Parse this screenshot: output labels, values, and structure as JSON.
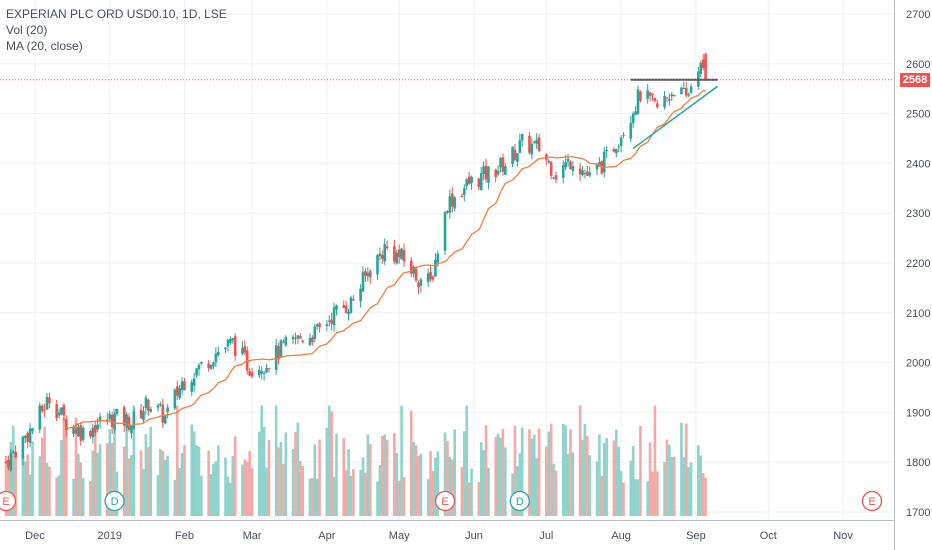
{
  "legend": {
    "symbol": "EXPERIAN PLC ORD USD0.10, 1D, LSE",
    "volume": "Vol (20)",
    "ma": "MA (20, close)"
  },
  "chart_data": {
    "type": "candlestick",
    "price_axis": {
      "ticks": [
        1700,
        1800,
        1900,
        2000,
        2100,
        2200,
        2300,
        2400,
        2500,
        2600,
        2700
      ],
      "range": [
        1690,
        2720
      ]
    },
    "last_price": 2568,
    "time_axis": {
      "labels": [
        "Dec",
        "2019",
        "Feb",
        "Mar",
        "Apr",
        "May",
        "Jun",
        "Jul",
        "Aug",
        "Sep",
        "Oct",
        "Nov"
      ]
    },
    "price_path": [
      [
        "2018-11-19",
        1800
      ],
      [
        "2018-11-30",
        1870
      ],
      [
        "2018-12-07",
        1930
      ],
      [
        "2018-12-14",
        1880
      ],
      [
        "2018-12-21",
        1860
      ],
      [
        "2018-12-28",
        1880
      ],
      [
        "2019-01-03",
        1890
      ],
      [
        "2019-01-10",
        1880
      ],
      [
        "2019-01-17",
        1920
      ],
      [
        "2019-01-24",
        1890
      ],
      [
        "2019-01-31",
        1960
      ],
      [
        "2019-02-07",
        1990
      ],
      [
        "2019-02-14",
        2020
      ],
      [
        "2019-02-21",
        2040
      ],
      [
        "2019-02-28",
        1990
      ],
      [
        "2019-03-07",
        2000
      ],
      [
        "2019-03-14",
        2030
      ],
      [
        "2019-03-21",
        2050
      ],
      [
        "2019-03-28",
        2060
      ],
      [
        "2019-04-04",
        2100
      ],
      [
        "2019-04-11",
        2120
      ],
      [
        "2019-04-18",
        2180
      ],
      [
        "2019-04-25",
        2230
      ],
      [
        "2019-05-02",
        2210
      ],
      [
        "2019-05-09",
        2170
      ],
      [
        "2019-05-14",
        2160
      ],
      [
        "2019-05-21",
        2320
      ],
      [
        "2019-05-30",
        2360
      ],
      [
        "2019-06-07",
        2380
      ],
      [
        "2019-06-14",
        2400
      ],
      [
        "2019-06-21",
        2440
      ],
      [
        "2019-06-28",
        2430
      ],
      [
        "2019-07-05",
        2380
      ],
      [
        "2019-07-12",
        2410
      ],
      [
        "2019-07-19",
        2370
      ],
      [
        "2019-07-26",
        2410
      ],
      [
        "2019-08-02",
        2470
      ],
      [
        "2019-08-09",
        2540
      ],
      [
        "2019-08-16",
        2510
      ],
      [
        "2019-08-23",
        2550
      ],
      [
        "2019-08-28",
        2530
      ],
      [
        "2019-09-02",
        2600
      ],
      [
        "2019-09-05",
        2568
      ]
    ],
    "moving_average": {
      "period": 20,
      "color": "#f57c3b"
    },
    "annotations": {
      "resistance_line": {
        "price": 2568,
        "from": "2019-08-05",
        "to": "2019-09-10",
        "color": "#4a5560"
      },
      "support_trendline": {
        "from": [
          "2019-08-06",
          2430
        ],
        "to": [
          "2019-09-10",
          2555
        ],
        "color": "#26a69a"
      }
    },
    "event_markers": [
      {
        "date": "2018-11-19",
        "label": "E",
        "color": "#ef5350"
      },
      {
        "date": "2019-01-03",
        "label": "D",
        "color": "#26a69a"
      },
      {
        "date": "2019-05-20",
        "label": "E",
        "color": "#ef5350"
      },
      {
        "date": "2019-06-20",
        "label": "D",
        "color": "#26a69a"
      },
      {
        "date": "2019-11-13",
        "label": "E",
        "color": "#ef5350"
      }
    ],
    "colors": {
      "up": "#26a69a",
      "down": "#ef5350",
      "vol_up": "#8fd3cb",
      "vol_down": "#f4a9a7"
    }
  }
}
